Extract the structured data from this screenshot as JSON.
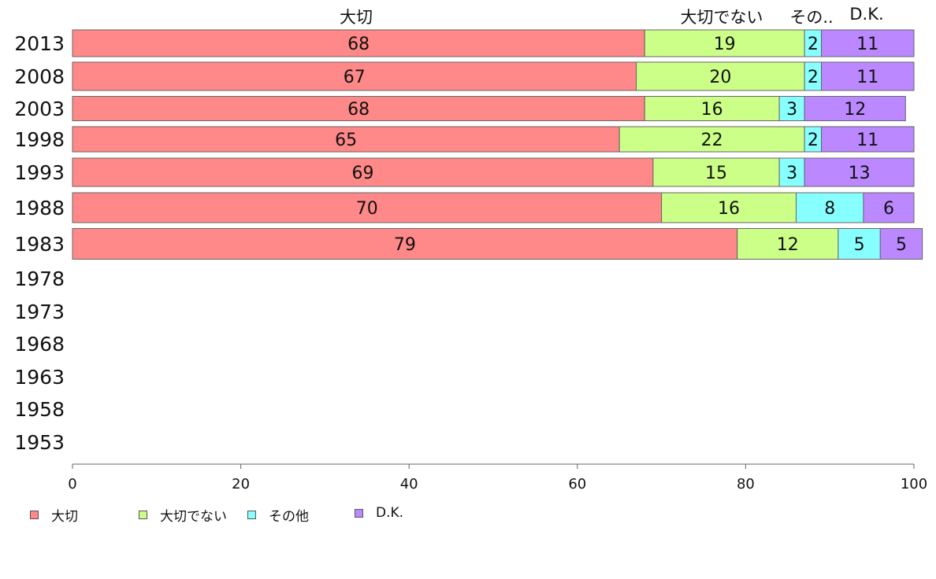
{
  "chart_data": {
    "type": "bar",
    "orientation": "horizontal",
    "stacked": true,
    "categories": [
      "2013",
      "2008",
      "2003",
      "1998",
      "1993",
      "1988",
      "1983",
      "1978",
      "1973",
      "1968",
      "1963",
      "1958",
      "1953"
    ],
    "series": [
      {
        "name": "大切",
        "color": "#ff8888",
        "values": [
          68,
          67,
          68,
          65,
          69,
          70,
          79,
          null,
          null,
          null,
          null,
          null,
          null
        ]
      },
      {
        "name": "大切でない",
        "color": "#ccff88",
        "values": [
          19,
          20,
          16,
          22,
          15,
          16,
          12,
          null,
          null,
          null,
          null,
          null,
          null
        ]
      },
      {
        "name": "その他",
        "color": "#88ffff",
        "values": [
          2,
          2,
          3,
          2,
          3,
          8,
          5,
          null,
          null,
          null,
          null,
          null,
          null
        ]
      },
      {
        "name": "D.K.",
        "color": "#bb88ff",
        "values": [
          11,
          11,
          12,
          11,
          13,
          6,
          5,
          null,
          null,
          null,
          null,
          null,
          null
        ]
      }
    ],
    "xlim": [
      0,
      100
    ],
    "xticks": [
      "0",
      "20",
      "40",
      "60",
      "80",
      "100"
    ],
    "legend_position": "bottom-left",
    "grid": false
  },
  "column_headers": [
    "大切",
    "大切でない",
    "その..",
    "D.K."
  ],
  "legend": [
    {
      "label": "大切",
      "color": "#ff8888"
    },
    {
      "label": "大切でない",
      "color": "#ccff88"
    },
    {
      "label": "その他",
      "color": "#88ffff"
    },
    {
      "label": "D.K.",
      "color": "#bb88ff"
    }
  ]
}
